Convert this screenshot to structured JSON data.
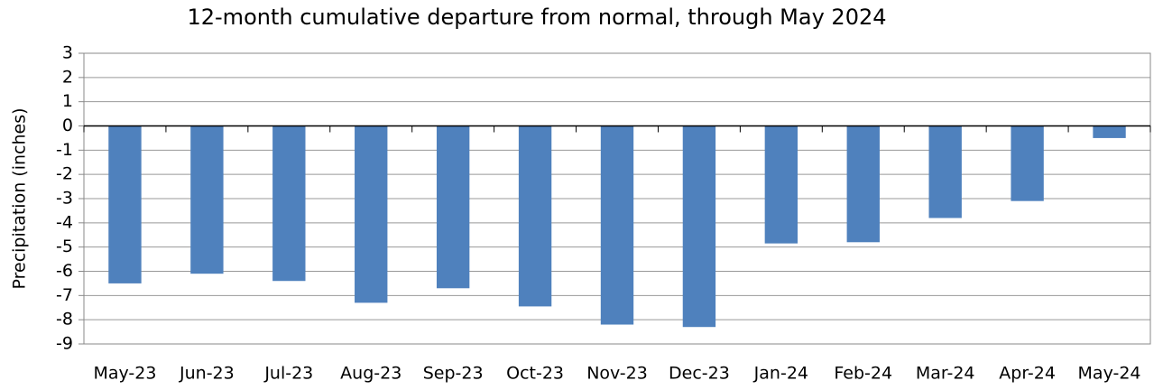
{
  "chart_data": {
    "type": "bar",
    "title": "12-month cumulative departure from normal, through May 2024",
    "y_label": "Precipitation (inches)",
    "categories": [
      "May-23",
      "Jun-23",
      "Jul-23",
      "Aug-23",
      "Sep-23",
      "Oct-23",
      "Nov-23",
      "Dec-23",
      "Jan-24",
      "Feb-24",
      "Mar-24",
      "Apr-24",
      "May-24"
    ],
    "values": [
      -6.5,
      -6.1,
      -6.4,
      -7.3,
      -6.7,
      -7.45,
      -8.2,
      -8.3,
      -4.85,
      -4.8,
      -3.8,
      -3.1,
      -0.5
    ],
    "color": "#4f81bd",
    "ylim": [
      -9,
      3
    ],
    "yticks": [
      -9,
      -8,
      -7,
      -6,
      -5,
      -4,
      -3,
      -2,
      -1,
      0,
      1,
      2,
      3
    ],
    "grid": true
  }
}
